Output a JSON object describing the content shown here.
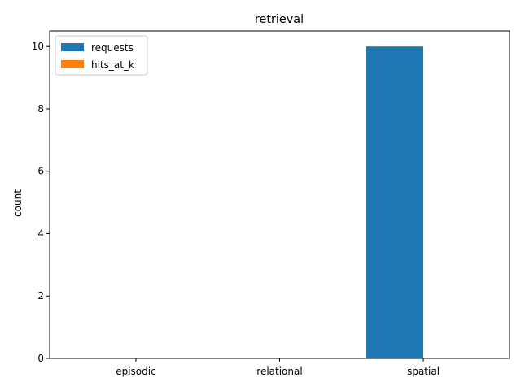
{
  "chart_data": {
    "type": "bar",
    "title": "retrieval",
    "xlabel": "",
    "ylabel": "count",
    "categories": [
      "episodic",
      "relational",
      "spatial"
    ],
    "series": [
      {
        "name": "requests",
        "values": [
          0,
          0,
          10
        ],
        "color": "#1f77b4"
      },
      {
        "name": "hits_at_k",
        "values": [
          0,
          0,
          0
        ],
        "color": "#ff7f0e"
      }
    ],
    "ylim": [
      0,
      10.5
    ],
    "yticks": [
      0,
      2,
      4,
      6,
      8,
      10
    ],
    "grid": false,
    "legend_placement": "top-left"
  }
}
